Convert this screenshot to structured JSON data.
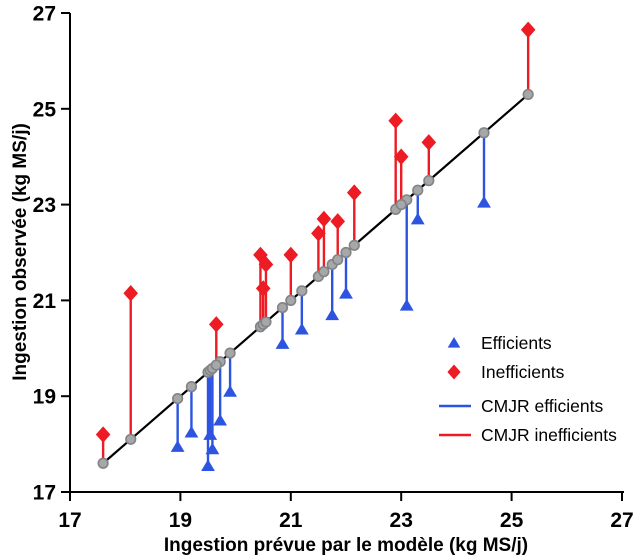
{
  "figure": {
    "background_color": "#ffffff",
    "x_axis_title": "Ingestion prévue par le modèle (kg MS/j)",
    "y_axis_title": "Ingestion observée (kg MS/j)"
  },
  "chart_data": {
    "type": "scatter",
    "title": "",
    "xlabel": "Ingestion prévue par le modèle (kg MS/j)",
    "ylabel": "Ingestion observée (kg MS/j)",
    "xlim": [
      17,
      27
    ],
    "ylim": [
      17,
      27
    ],
    "x_ticks": [
      17,
      19,
      21,
      23,
      25,
      27
    ],
    "y_ticks": [
      17,
      19,
      21,
      23,
      25,
      27
    ],
    "grid": false,
    "colors": {
      "efficient": "#2C54E0",
      "inefficient": "#EC1B24",
      "identity_line": "#000000",
      "predicted_dot_fill": "#A6A7A9",
      "predicted_dot_stroke": "#828385",
      "axis": "#000000"
    },
    "identity_line": {
      "description": "bisector line through predicted values (y = x)",
      "x_start": 17.6,
      "x_end": 25.3
    },
    "predicted_dot": {
      "description": "gray dot on the line = predicted value (pred, pred)"
    },
    "series": [
      {
        "name": "Efficients",
        "marker": "triangle",
        "color": "#2C54E0",
        "residual_line_label": "CMJR efficients",
        "points": [
          {
            "pred": 18.95,
            "obs": 17.95
          },
          {
            "pred": 19.2,
            "obs": 18.25
          },
          {
            "pred": 19.5,
            "obs": 17.55
          },
          {
            "pred": 19.54,
            "obs": 18.2
          },
          {
            "pred": 19.58,
            "obs": 17.9
          },
          {
            "pred": 19.72,
            "obs": 18.5
          },
          {
            "pred": 19.9,
            "obs": 19.1
          },
          {
            "pred": 20.85,
            "obs": 20.1
          },
          {
            "pred": 21.2,
            "obs": 20.4
          },
          {
            "pred": 21.75,
            "obs": 20.7
          },
          {
            "pred": 22.0,
            "obs": 21.15
          },
          {
            "pred": 23.1,
            "obs": 20.9
          },
          {
            "pred": 23.3,
            "obs": 22.7
          },
          {
            "pred": 24.5,
            "obs": 23.05
          }
        ]
      },
      {
        "name": "Inefficients",
        "marker": "diamond",
        "color": "#EC1B24",
        "residual_line_label": "CMJR inefficients",
        "points": [
          {
            "pred": 17.6,
            "obs": 18.2
          },
          {
            "pred": 18.1,
            "obs": 21.15
          },
          {
            "pred": 19.65,
            "obs": 20.5
          },
          {
            "pred": 20.45,
            "obs": 21.95
          },
          {
            "pred": 20.5,
            "obs": 21.25
          },
          {
            "pred": 20.55,
            "obs": 21.75
          },
          {
            "pred": 21.0,
            "obs": 21.95
          },
          {
            "pred": 21.5,
            "obs": 22.4
          },
          {
            "pred": 21.6,
            "obs": 22.7
          },
          {
            "pred": 21.85,
            "obs": 22.65
          },
          {
            "pred": 22.15,
            "obs": 23.25
          },
          {
            "pred": 22.9,
            "obs": 24.75
          },
          {
            "pred": 23.0,
            "obs": 24.0
          },
          {
            "pred": 23.5,
            "obs": 24.3
          },
          {
            "pred": 25.3,
            "obs": 26.65
          }
        ]
      }
    ],
    "legend": {
      "position": "lower-right",
      "entries": [
        {
          "label": "Efficients",
          "marker": "triangle",
          "color": "#2C54E0"
        },
        {
          "label": "Inefficients",
          "marker": "diamond",
          "color": "#EC1B24"
        },
        {
          "label": "CMJR efficients",
          "marker": "line",
          "color": "#2C54E0"
        },
        {
          "label": "CMJR inefficients",
          "marker": "line",
          "color": "#EC1B24"
        }
      ]
    }
  }
}
